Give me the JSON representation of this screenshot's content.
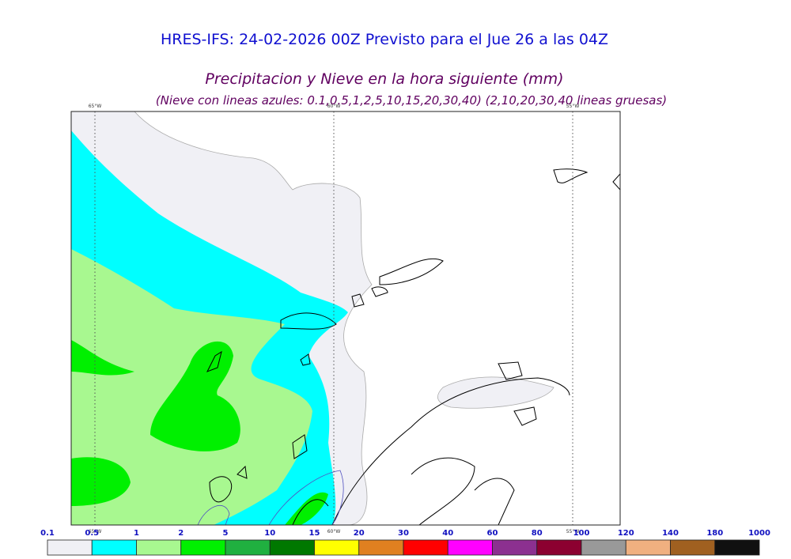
{
  "header": {
    "title": "HRES-IFS: 24-02-2026 00Z Previsto para el Jue 26 a las 04Z",
    "subtitle": "Precipitacion y Nieve en la hora siguiente (mm)",
    "note": "(Nieve con lineas azules: 0.1,0.5,1,2,5,10,15,20,30,40)  (2,10,20,30,40 lineas gruesas)"
  },
  "map": {
    "longitudes": [
      "65°W",
      "60°W",
      "55°W"
    ]
  },
  "colorbar": {
    "labels": [
      "0.1",
      "0.5",
      "1",
      "2",
      "5",
      "10",
      "15",
      "20",
      "30",
      "40",
      "60",
      "80",
      "100",
      "120",
      "140",
      "180",
      "1000"
    ],
    "colors": [
      "#f0f0f5",
      "#00ffff",
      "#a8f890",
      "#00f000",
      "#20b040",
      "#007800",
      "#ffff00",
      "#e08020",
      "#ff0000",
      "#ff00ff",
      "#8c3090",
      "#8c0030",
      "#999999",
      "#f0b080",
      "#a06020",
      "#101010"
    ]
  }
}
